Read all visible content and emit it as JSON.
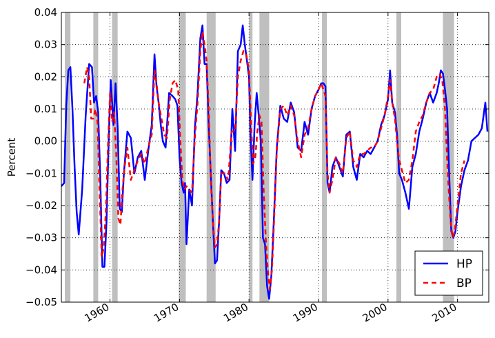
{
  "chart_data": {
    "type": "line",
    "title": "",
    "xlabel": "",
    "ylabel": "Percent",
    "xlim": [
      1953.0,
      2014.5
    ],
    "ylim": [
      -0.05,
      0.04
    ],
    "grid": true,
    "legend": "lower-right",
    "x_ticks": [
      1960,
      1970,
      1980,
      1990,
      2000,
      2010
    ],
    "x_tick_labels": [
      "1960",
      "1970",
      "1980",
      "1990",
      "2000",
      "2010"
    ],
    "y_ticks": [
      -0.05,
      -0.04,
      -0.03,
      -0.02,
      -0.01,
      0.0,
      0.01,
      0.02,
      0.03,
      0.04
    ],
    "y_tick_labels": [
      "−0.05",
      "−0.04",
      "−0.03",
      "−0.02",
      "−0.01",
      "0.00",
      "0.01",
      "0.02",
      "0.03",
      "0.04"
    ],
    "recessions": [
      [
        1953.5,
        1954.3
      ],
      [
        1957.6,
        1958.3
      ],
      [
        1960.3,
        1961.1
      ],
      [
        1969.9,
        1970.9
      ],
      [
        1973.9,
        1975.2
      ],
      [
        1980.0,
        1980.5
      ],
      [
        1981.5,
        1982.9
      ],
      [
        1990.5,
        1991.2
      ],
      [
        2001.2,
        2001.9
      ],
      [
        2007.9,
        2009.5
      ]
    ],
    "series": [
      {
        "name": "HP",
        "color": "#0000ff",
        "style": "solid",
        "x": [
          1953.0,
          1953.4,
          1953.7,
          1954.0,
          1954.3,
          1954.6,
          1954.9,
          1955.2,
          1955.5,
          1956.0,
          1956.5,
          1957.0,
          1957.4,
          1957.7,
          1958.0,
          1958.3,
          1958.6,
          1958.9,
          1959.2,
          1959.5,
          1959.8,
          1960.1,
          1960.5,
          1960.8,
          1961.1,
          1961.4,
          1961.7,
          1962.0,
          1962.5,
          1963.0,
          1963.5,
          1964.0,
          1964.5,
          1965.0,
          1965.5,
          1966.0,
          1966.4,
          1966.7,
          1967.0,
          1967.3,
          1967.6,
          1968.0,
          1968.5,
          1969.0,
          1969.4,
          1969.7,
          1970.0,
          1970.3,
          1970.6,
          1970.8,
          1971.0,
          1971.4,
          1971.8,
          1972.2,
          1972.6,
          1973.0,
          1973.3,
          1973.6,
          1973.9,
          1974.2,
          1974.5,
          1974.8,
          1975.1,
          1975.4,
          1975.7,
          1976.0,
          1976.4,
          1976.8,
          1977.2,
          1977.6,
          1978.0,
          1978.4,
          1978.8,
          1979.1,
          1979.4,
          1979.7,
          1980.0,
          1980.2,
          1980.5,
          1980.8,
          1981.1,
          1981.4,
          1981.7,
          1982.0,
          1982.3,
          1982.6,
          1982.9,
          1983.2,
          1983.5,
          1984.0,
          1984.5,
          1985.0,
          1985.5,
          1986.0,
          1986.5,
          1987.0,
          1987.5,
          1988.0,
          1988.5,
          1989.0,
          1989.5,
          1990.0,
          1990.4,
          1990.7,
          1991.0,
          1991.3,
          1991.6,
          1992.0,
          1992.5,
          1993.0,
          1993.5,
          1994.0,
          1994.5,
          1995.0,
          1995.5,
          1996.0,
          1996.5,
          1997.0,
          1997.5,
          1998.0,
          1998.5,
          1999.0,
          1999.5,
          2000.0,
          2000.3,
          2000.6,
          2001.0,
          2001.3,
          2001.6,
          2002.0,
          2002.5,
          2003.0,
          2003.5,
          2004.0,
          2004.5,
          2005.0,
          2005.5,
          2006.0,
          2006.5,
          2007.0,
          2007.3,
          2007.6,
          2007.9,
          2008.2,
          2008.5,
          2008.8,
          2009.1,
          2009.4,
          2009.7,
          2010.0,
          2010.5,
          2011.0,
          2011.5,
          2012.0,
          2012.5,
          2013.0,
          2013.5,
          2014.0,
          2014.3
        ],
        "values": [
          -0.014,
          -0.013,
          0.011,
          0.022,
          0.023,
          0.01,
          -0.008,
          -0.022,
          -0.029,
          -0.015,
          0.008,
          0.024,
          0.023,
          0.012,
          0.014,
          0.009,
          -0.012,
          -0.039,
          -0.039,
          -0.025,
          0.0,
          0.019,
          0.005,
          0.018,
          0.004,
          -0.021,
          -0.022,
          -0.01,
          0.003,
          0.001,
          -0.01,
          -0.005,
          -0.003,
          -0.012,
          -0.003,
          0.005,
          0.027,
          0.017,
          0.012,
          0.005,
          0.0,
          -0.002,
          0.015,
          0.014,
          0.013,
          0.011,
          -0.005,
          -0.013,
          -0.016,
          -0.013,
          -0.032,
          -0.015,
          -0.02,
          0.004,
          0.015,
          0.032,
          0.036,
          0.024,
          0.024,
          0.005,
          -0.01,
          -0.025,
          -0.038,
          -0.037,
          -0.025,
          -0.009,
          -0.01,
          -0.013,
          -0.012,
          0.01,
          -0.003,
          0.028,
          0.03,
          0.036,
          0.03,
          0.025,
          0.02,
          0.003,
          -0.012,
          0.005,
          0.015,
          0.008,
          0.0,
          -0.03,
          -0.032,
          -0.045,
          -0.049,
          -0.042,
          -0.028,
          -0.002,
          0.011,
          0.007,
          0.006,
          0.012,
          0.009,
          -0.002,
          -0.003,
          0.006,
          0.002,
          0.01,
          0.014,
          0.016,
          0.018,
          0.018,
          0.017,
          -0.013,
          -0.016,
          -0.008,
          -0.005,
          -0.008,
          -0.011,
          0.002,
          0.003,
          -0.008,
          -0.012,
          -0.004,
          -0.005,
          -0.003,
          -0.004,
          -0.002,
          0.0,
          0.005,
          0.008,
          0.013,
          0.022,
          0.012,
          0.009,
          0.002,
          -0.01,
          -0.012,
          -0.016,
          -0.021,
          -0.008,
          -0.004,
          0.003,
          0.007,
          0.012,
          0.015,
          0.012,
          0.015,
          0.018,
          0.022,
          0.021,
          0.016,
          0.01,
          -0.01,
          -0.028,
          -0.03,
          -0.028,
          -0.022,
          -0.014,
          -0.009,
          -0.006,
          0.0,
          0.001,
          0.002,
          0.004,
          0.012,
          0.003
        ]
      },
      {
        "name": "BP",
        "color": "#ff0000",
        "style": "dashed",
        "x": [
          1956.3,
          1956.7,
          1957.0,
          1957.3,
          1957.6,
          1957.9,
          1958.2,
          1958.5,
          1958.8,
          1959.1,
          1959.4,
          1959.7,
          1960.0,
          1960.3,
          1960.6,
          1960.9,
          1961.2,
          1961.5,
          1961.8,
          1962.1,
          1962.5,
          1963.0,
          1963.5,
          1964.0,
          1964.5,
          1965.0,
          1965.5,
          1966.0,
          1966.4,
          1966.7,
          1967.0,
          1967.4,
          1967.8,
          1968.2,
          1968.6,
          1969.0,
          1969.4,
          1969.8,
          1970.1,
          1970.4,
          1970.7,
          1971.0,
          1971.4,
          1971.8,
          1972.2,
          1972.6,
          1973.0,
          1973.3,
          1973.6,
          1973.9,
          1974.2,
          1974.5,
          1974.8,
          1975.1,
          1975.4,
          1975.7,
          1976.0,
          1976.5,
          1977.0,
          1977.5,
          1978.0,
          1978.4,
          1978.8,
          1979.2,
          1979.6,
          1980.0,
          1980.3,
          1980.6,
          1980.9,
          1981.2,
          1981.5,
          1981.8,
          1982.1,
          1982.4,
          1982.7,
          1983.0,
          1983.3,
          1983.6,
          1984.0,
          1984.5,
          1985.0,
          1985.5,
          1986.0,
          1986.5,
          1987.0,
          1987.5,
          1988.0,
          1988.5,
          1989.0,
          1989.5,
          1990.0,
          1990.4,
          1990.7,
          1991.0,
          1991.3,
          1991.6,
          1992.0,
          1992.5,
          1993.0,
          1993.5,
          1994.0,
          1994.5,
          1995.0,
          1995.5,
          1996.0,
          1996.5,
          1997.0,
          1997.5,
          1998.0,
          1998.5,
          1999.0,
          1999.5,
          2000.0,
          2000.3,
          2000.6,
          2001.0,
          2001.3,
          2001.6,
          2002.0,
          2002.5,
          2003.0,
          2003.5,
          2004.0,
          2004.5,
          2005.0,
          2005.5,
          2006.0,
          2006.5,
          2007.0,
          2007.4,
          2007.8,
          2008.2,
          2008.6,
          2009.0,
          2009.3,
          2009.6,
          2010.0,
          2010.5,
          2011.0
        ],
        "values": [
          0.018,
          0.023,
          0.02,
          0.007,
          0.007,
          0.01,
          0.006,
          -0.015,
          -0.036,
          -0.033,
          -0.022,
          -0.002,
          0.015,
          0.006,
          0.009,
          -0.004,
          -0.024,
          -0.026,
          -0.015,
          -0.008,
          -0.002,
          -0.012,
          -0.009,
          -0.006,
          -0.004,
          -0.007,
          -0.002,
          0.002,
          0.022,
          0.018,
          0.012,
          0.007,
          0.002,
          0.001,
          0.013,
          0.018,
          0.019,
          0.016,
          0.001,
          -0.012,
          -0.015,
          -0.014,
          -0.015,
          -0.016,
          0.001,
          0.012,
          0.028,
          0.034,
          0.03,
          0.025,
          0.01,
          -0.012,
          -0.025,
          -0.033,
          -0.032,
          -0.025,
          -0.01,
          -0.01,
          -0.012,
          0.003,
          0.003,
          0.02,
          0.025,
          0.028,
          0.027,
          0.022,
          0.005,
          -0.007,
          -0.005,
          0.003,
          0.008,
          0.006,
          -0.015,
          -0.03,
          -0.04,
          -0.046,
          -0.04,
          -0.025,
          -0.003,
          0.01,
          0.011,
          0.008,
          0.011,
          0.008,
          0.0,
          -0.005,
          0.002,
          0.004,
          0.01,
          0.014,
          0.016,
          0.018,
          0.016,
          0.014,
          -0.01,
          -0.016,
          -0.012,
          -0.005,
          -0.007,
          -0.01,
          0.001,
          0.003,
          -0.006,
          -0.008,
          -0.004,
          -0.004,
          -0.003,
          -0.002,
          -0.002,
          0.0,
          0.004,
          0.008,
          0.014,
          0.019,
          0.012,
          0.007,
          0.0,
          -0.006,
          -0.009,
          -0.013,
          -0.012,
          -0.006,
          0.003,
          0.006,
          0.008,
          0.012,
          0.015,
          0.016,
          0.02,
          0.021,
          0.019,
          0.01,
          -0.01,
          -0.025,
          -0.03,
          -0.028,
          -0.02,
          -0.01,
          -0.006
        ]
      }
    ]
  }
}
